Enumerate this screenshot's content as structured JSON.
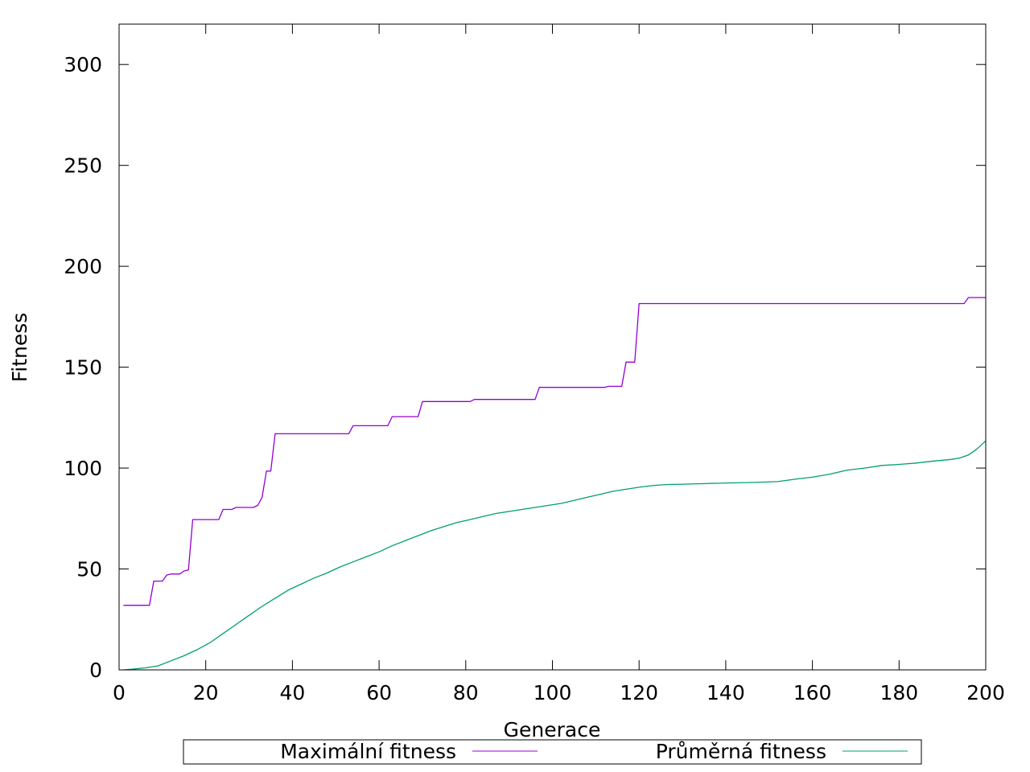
{
  "chart_data": {
    "type": "line",
    "xlabel": "Generace",
    "ylabel": "Fitness",
    "xlim": [
      0,
      200
    ],
    "ylim": [
      0,
      320
    ],
    "xticks": [
      0,
      20,
      40,
      60,
      80,
      100,
      120,
      140,
      160,
      180,
      200
    ],
    "yticks": [
      0,
      50,
      100,
      150,
      200,
      250,
      300
    ],
    "xtick_labels": [
      "0",
      "20",
      "40",
      "60",
      "80",
      "100",
      "120",
      "140",
      "160",
      "180",
      "200"
    ],
    "ytick_labels": [
      "0",
      "50",
      "100",
      "150",
      "200",
      "250",
      "300"
    ],
    "grid": false,
    "legend_position": "bottom",
    "series": [
      {
        "name": "Maximální fitness",
        "color": "#9400d3",
        "points": [
          [
            1,
            32
          ],
          [
            7,
            32
          ],
          [
            8,
            44
          ],
          [
            10,
            44
          ],
          [
            11,
            47
          ],
          [
            12,
            47.5
          ],
          [
            14,
            47.5
          ],
          [
            15,
            49
          ],
          [
            16,
            49.5
          ],
          [
            17,
            74.5
          ],
          [
            23,
            74.5
          ],
          [
            24,
            79.5
          ],
          [
            26,
            79.5
          ],
          [
            27,
            80.5
          ],
          [
            31,
            80.5
          ],
          [
            32,
            81.5
          ],
          [
            33,
            85.5
          ],
          [
            34,
            98.5
          ],
          [
            35,
            98.5
          ],
          [
            36,
            117
          ],
          [
            53,
            117
          ],
          [
            54,
            121
          ],
          [
            62,
            121
          ],
          [
            63,
            125.5
          ],
          [
            69,
            125.5
          ],
          [
            70,
            133
          ],
          [
            81,
            133
          ],
          [
            82,
            134
          ],
          [
            96,
            134
          ],
          [
            97,
            140
          ],
          [
            112,
            140
          ],
          [
            113,
            140.5
          ],
          [
            116,
            140.5
          ],
          [
            117,
            152.5
          ],
          [
            119,
            152.5
          ],
          [
            120,
            181.5
          ],
          [
            195,
            181.5
          ],
          [
            196,
            184.5
          ],
          [
            200,
            184.5
          ]
        ]
      },
      {
        "name": "Průměrná fitness",
        "color": "#009e73",
        "points": [
          [
            1,
            0
          ],
          [
            3,
            0.3
          ],
          [
            6,
            1
          ],
          [
            9,
            2
          ],
          [
            12,
            4.5
          ],
          [
            15,
            7
          ],
          [
            18,
            10
          ],
          [
            21,
            13.5
          ],
          [
            24,
            18
          ],
          [
            27,
            22.5
          ],
          [
            30,
            27
          ],
          [
            33,
            31.5
          ],
          [
            36,
            35.5
          ],
          [
            39,
            39.5
          ],
          [
            42,
            42.5
          ],
          [
            45,
            45.5
          ],
          [
            48,
            48
          ],
          [
            51,
            51
          ],
          [
            54,
            53.5
          ],
          [
            57,
            56
          ],
          [
            60,
            58.5
          ],
          [
            63,
            61.5
          ],
          [
            66,
            64
          ],
          [
            69,
            66.5
          ],
          [
            72,
            69
          ],
          [
            75,
            71
          ],
          [
            78,
            73
          ],
          [
            81,
            74.5
          ],
          [
            84,
            76
          ],
          [
            87,
            77.5
          ],
          [
            90,
            78.5
          ],
          [
            93,
            79.5
          ],
          [
            96,
            80.5
          ],
          [
            99,
            81.5
          ],
          [
            102,
            82.5
          ],
          [
            105,
            84
          ],
          [
            108,
            85.5
          ],
          [
            111,
            87
          ],
          [
            114,
            88.5
          ],
          [
            117,
            89.5
          ],
          [
            120,
            90.5
          ],
          [
            123,
            91.3
          ],
          [
            126,
            91.8
          ],
          [
            130,
            92
          ],
          [
            135,
            92.3
          ],
          [
            140,
            92.6
          ],
          [
            145,
            92.8
          ],
          [
            148,
            93
          ],
          [
            152,
            93.3
          ],
          [
            156,
            94.5
          ],
          [
            160,
            95.5
          ],
          [
            164,
            97
          ],
          [
            168,
            99
          ],
          [
            172,
            100
          ],
          [
            176,
            101.3
          ],
          [
            180,
            101.8
          ],
          [
            184,
            102.5
          ],
          [
            188,
            103.5
          ],
          [
            192,
            104.3
          ],
          [
            194,
            105
          ],
          [
            196,
            106.5
          ],
          [
            198,
            109.5
          ],
          [
            200,
            113.5
          ]
        ]
      }
    ]
  }
}
